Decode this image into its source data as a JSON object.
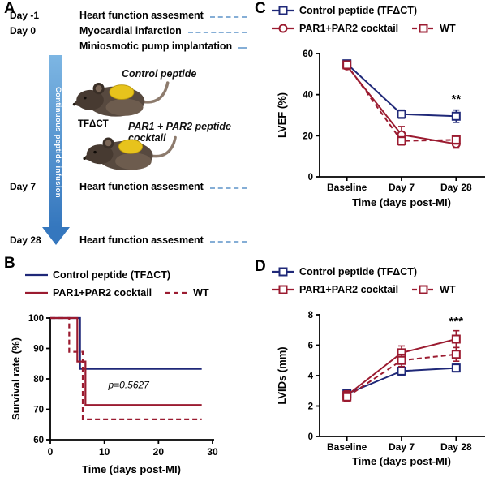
{
  "panelA": {
    "label": "A",
    "rows": [
      {
        "day": "Day -1",
        "event": "Heart function assesment"
      },
      {
        "day": "Day 0",
        "event": "Myocardial infarction"
      },
      {
        "day": "",
        "event": "Miniosmotic pump implantation"
      },
      {
        "day": "Day 7",
        "event": "Heart function assesment"
      },
      {
        "day": "Day 28",
        "event": "Heart function assesment"
      }
    ],
    "arrow_label": "Continuous peptide infusion",
    "tf_label": "TFΔCT",
    "mouse1_caption": "Control peptide",
    "mouse2_caption": "PAR1 + PAR2 peptide cocktail"
  },
  "panelB": {
    "label": "B"
  },
  "panelC": {
    "label": "C"
  },
  "panelD": {
    "label": "D"
  },
  "colors": {
    "navy": "#1f2878",
    "dark_red": "#9b1b30",
    "arrow_blue": "#3577be",
    "timeline_dash_blue": "#85aed6",
    "pump_patch_yellow": "#e7c31c"
  },
  "chart_data": [
    {
      "id": "survival",
      "type": "step",
      "title": "Survival after MI",
      "xlabel": "Time (days post-MI)",
      "ylabel": "Survival rate (%)",
      "xlim": [
        0,
        30
      ],
      "xticks": [
        0,
        10,
        20,
        30
      ],
      "ylim": [
        60,
        100
      ],
      "yticks": [
        60,
        70,
        80,
        90,
        100
      ],
      "grid": false,
      "legend_position": "top",
      "annotation": {
        "text": "p=0.5627",
        "x": 14.5,
        "y": 77,
        "italic": true,
        "size": 12
      },
      "series": [
        {
          "name": "Control peptide (TFΔCT)",
          "color": "#1f2878",
          "dash": null,
          "marker": null,
          "points": [
            [
              0,
              100
            ],
            [
              5.5,
              100
            ],
            [
              5.5,
              83.3
            ],
            [
              28,
              83.3
            ]
          ]
        },
        {
          "name": "PAR1+PAR2 cocktail",
          "color": "#9b1b30",
          "dash": null,
          "marker": null,
          "points": [
            [
              0,
              100
            ],
            [
              5,
              100
            ],
            [
              5,
              85.7
            ],
            [
              6.5,
              85.7
            ],
            [
              6.5,
              71.4
            ],
            [
              28,
              71.4
            ]
          ]
        },
        {
          "name": "WT",
          "color": "#9b1b30",
          "dash": "6 4",
          "marker": null,
          "points": [
            [
              0,
              100
            ],
            [
              3.5,
              100
            ],
            [
              3.5,
              88.9
            ],
            [
              6,
              88.9
            ],
            [
              6,
              66.7
            ],
            [
              28,
              66.7
            ]
          ]
        }
      ]
    },
    {
      "id": "lvef",
      "type": "line",
      "title": "Left ventricular ejection fraction",
      "xlabel": "Time (days post-MI)",
      "ylabel": "LVEF (%)",
      "categories": [
        "Baseline",
        "Day 7",
        "Day 28"
      ],
      "ylim": [
        0,
        60
      ],
      "yticks": [
        0,
        20,
        40,
        60
      ],
      "grid": false,
      "legend_position": "top",
      "annotation": {
        "text": "**",
        "x": 2,
        "y": 36,
        "size": 15
      },
      "series": [
        {
          "name": "Control peptide (TFΔCT)",
          "color": "#1f2878",
          "dash": null,
          "marker": "square",
          "values": [
            55,
            30.5,
            29.5
          ],
          "errors": [
            1.5,
            2,
            3
          ]
        },
        {
          "name": "PAR1+PAR2 cocktail",
          "color": "#9b1b30",
          "dash": null,
          "marker": "circle",
          "values": [
            54,
            20.5,
            16
          ],
          "errors": [
            1.5,
            4,
            2
          ]
        },
        {
          "name": "WT",
          "color": "#9b1b30",
          "dash": "6 4",
          "marker": "square",
          "values": [
            54.5,
            17.5,
            18
          ],
          "errors": [
            1.5,
            2,
            2
          ]
        }
      ]
    },
    {
      "id": "lvids",
      "type": "line",
      "title": "Left ventricular internal diameter (systole)",
      "xlabel": "Time (days post-MI)",
      "ylabel": "LVIDs (mm)",
      "categories": [
        "Baseline",
        "Day 7",
        "Day 28"
      ],
      "ylim": [
        0,
        8
      ],
      "yticks": [
        0,
        2,
        4,
        6,
        8
      ],
      "grid": false,
      "legend_position": "top",
      "annotation": {
        "text": "***",
        "x": 2,
        "y": 7.3,
        "size": 15
      },
      "series": [
        {
          "name": "Control peptide (TFΔCT)",
          "color": "#1f2878",
          "dash": null,
          "marker": "square",
          "values": [
            2.8,
            4.3,
            4.5
          ],
          "errors": [
            0.25,
            0.3,
            0.25
          ]
        },
        {
          "name": "PAR1+PAR2 cocktail",
          "color": "#9b1b30",
          "dash": null,
          "marker": "square",
          "values": [
            2.7,
            5.5,
            6.4
          ],
          "errors": [
            0.3,
            0.45,
            0.55
          ]
        },
        {
          "name": "WT",
          "color": "#9b1b30",
          "dash": "6 4",
          "marker": "square",
          "values": [
            2.6,
            5.0,
            5.4
          ],
          "errors": [
            0.3,
            0.4,
            0.45
          ]
        }
      ]
    }
  ]
}
